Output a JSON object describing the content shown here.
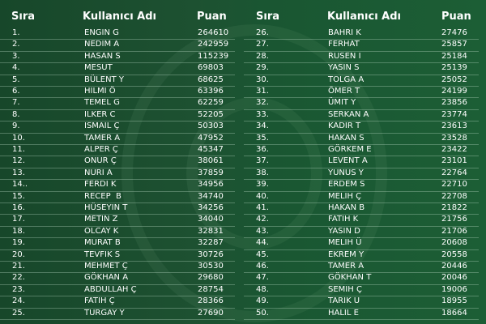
{
  "headers": {
    "rank": "Sıra",
    "name": "Kullanıcı Adı",
    "points": "Puan"
  },
  "colors": {
    "background": "#1b5230",
    "text": "#ffffff"
  },
  "rows": [
    {
      "rank": "1.",
      "name": "ENGIN G",
      "points": "264610"
    },
    {
      "rank": "2.",
      "name": "NEDIM A",
      "points": "242959"
    },
    {
      "rank": "3.",
      "name": "HASAN S",
      "points": "115239"
    },
    {
      "rank": "4.",
      "name": "MESUT",
      "points": "69803"
    },
    {
      "rank": "5.",
      "name": "BÜLENT Y",
      "points": "68625"
    },
    {
      "rank": "6.",
      "name": "HILMI Ö",
      "points": "63396"
    },
    {
      "rank": "7.",
      "name": "TEMEL G",
      "points": "62259"
    },
    {
      "rank": "8.",
      "name": "ILKER C",
      "points": "52205"
    },
    {
      "rank": "9.",
      "name": "ISMAIL Ç",
      "points": "50303"
    },
    {
      "rank": "10.",
      "name": "TAMER A",
      "points": "47952"
    },
    {
      "rank": "11.",
      "name": "ALPER Ç",
      "points": "45347"
    },
    {
      "rank": "12.",
      "name": "ONUR Ç",
      "points": "38061"
    },
    {
      "rank": "13.",
      "name": "NURI A",
      "points": "37859"
    },
    {
      "rank": "14..",
      "name": "FERDI K",
      "points": "34956"
    },
    {
      "rank": "15.",
      "name": "RECEP  B",
      "points": "34740"
    },
    {
      "rank": "16.",
      "name": "HÜSEYIN T",
      "points": "34256"
    },
    {
      "rank": "17.",
      "name": "METIN Z",
      "points": "34040"
    },
    {
      "rank": "18.",
      "name": "OLCAY K",
      "points": "32831"
    },
    {
      "rank": "19.",
      "name": "MURAT B",
      "points": "32287"
    },
    {
      "rank": "20.",
      "name": "TEVFIK S",
      "points": "30726"
    },
    {
      "rank": "21.",
      "name": "MEHMET Ç",
      "points": "30530"
    },
    {
      "rank": "22.",
      "name": "GÖKHAN A",
      "points": "29680"
    },
    {
      "rank": "23.",
      "name": "ABDULLAH Ç",
      "points": "28754"
    },
    {
      "rank": "24.",
      "name": "FATIH Ç",
      "points": "28366"
    },
    {
      "rank": "25.",
      "name": "TURGAY Y",
      "points": "27690"
    },
    {
      "rank": "26.",
      "name": "BAHRI K",
      "points": "27476"
    },
    {
      "rank": "27.",
      "name": "FERHAT",
      "points": "25857"
    },
    {
      "rank": "28.",
      "name": "RUSEN I",
      "points": "25184"
    },
    {
      "rank": "29.",
      "name": "YASIN S",
      "points": "25139"
    },
    {
      "rank": "30.",
      "name": "TOLGA A",
      "points": "25052"
    },
    {
      "rank": "31.",
      "name": "ÖMER T",
      "points": "24199"
    },
    {
      "rank": "32.",
      "name": "ÜMIT Y",
      "points": "23856"
    },
    {
      "rank": "33.",
      "name": "SERKAN A",
      "points": "23774"
    },
    {
      "rank": "34.",
      "name": "KADIR T",
      "points": "23613"
    },
    {
      "rank": "35.",
      "name": "HAKAN S",
      "points": "23528"
    },
    {
      "rank": "36.",
      "name": "GÖRKEM E",
      "points": "23422"
    },
    {
      "rank": "37.",
      "name": "LEVENT A",
      "points": "23101"
    },
    {
      "rank": "38.",
      "name": "YUNUS Y",
      "points": "22764"
    },
    {
      "rank": "39.",
      "name": "ERDEM S",
      "points": "22710"
    },
    {
      "rank": "40.",
      "name": "MELIH Ç",
      "points": "22708"
    },
    {
      "rank": "41.",
      "name": "HAKAN B",
      "points": "21822"
    },
    {
      "rank": "42.",
      "name": "FATIH K",
      "points": "21756"
    },
    {
      "rank": "43.",
      "name": "YASIN D",
      "points": "21706"
    },
    {
      "rank": "44.",
      "name": "MELIH Ü",
      "points": "20608"
    },
    {
      "rank": "45.",
      "name": "EKREM Y",
      "points": "20558"
    },
    {
      "rank": "46.",
      "name": "TAMER A",
      "points": "20446"
    },
    {
      "rank": "47.",
      "name": "GÖKHAN T",
      "points": "20046"
    },
    {
      "rank": "48.",
      "name": "SEMIH Ç",
      "points": "19006"
    },
    {
      "rank": "49.",
      "name": "TARIK U",
      "points": "18955"
    },
    {
      "rank": "50.",
      "name": "HALIL E",
      "points": "18664"
    }
  ]
}
